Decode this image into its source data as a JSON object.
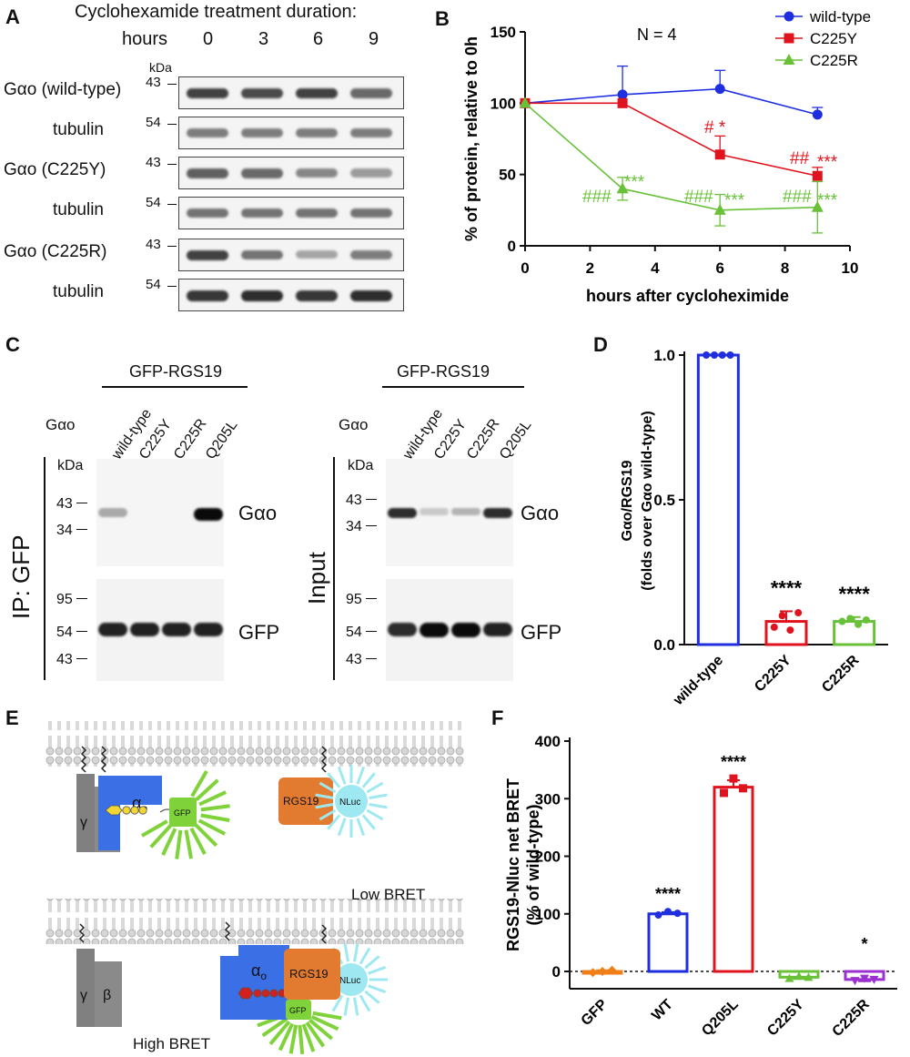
{
  "panels": {
    "A": "A",
    "B": "B",
    "C": "C",
    "D": "D",
    "E": "E",
    "F": "F"
  },
  "panel_a": {
    "title": "Cyclohexamide treatment duration:",
    "hours_label": "hours",
    "timepoints": [
      "0",
      "3",
      "6",
      "9"
    ],
    "kda_label": "kDa",
    "rows": [
      {
        "label": "Gαo (wild-type)",
        "kda": "43",
        "intensities": [
          0.85,
          0.8,
          0.85,
          0.65
        ]
      },
      {
        "label": "tubulin",
        "kda": "54",
        "intensities": [
          0.55,
          0.55,
          0.55,
          0.55
        ]
      },
      {
        "label": "Gαo (C225Y)",
        "kda": "43",
        "intensities": [
          0.7,
          0.65,
          0.5,
          0.4
        ]
      },
      {
        "label": "tubulin",
        "kda": "54",
        "intensities": [
          0.6,
          0.6,
          0.6,
          0.6
        ]
      },
      {
        "label": "Gαo (C225R)",
        "kda": "43",
        "intensities": [
          0.85,
          0.6,
          0.35,
          0.55
        ]
      },
      {
        "label": "tubulin",
        "kda": "54",
        "intensities": [
          0.9,
          0.95,
          0.9,
          0.95
        ]
      }
    ]
  },
  "panel_b": {
    "n_label": "N = 4",
    "annotations": {
      "c225y_6h": "# *",
      "c225y_9h_hash": "##",
      "c225y_9h_star": "***",
      "c225r_3h_hash": "###",
      "c225r_3h_star": "***",
      "c225r_6h_hash": "###",
      "c225r_6h_star": "***",
      "c225r_9h_hash": "###",
      "c225r_9h_star": "***"
    }
  },
  "panel_c": {
    "construct": "GFP-RGS19",
    "galpha": "Gαo",
    "lanes": [
      "wild-type",
      "C225Y",
      "C225R",
      "Q205L"
    ],
    "kda_label": "kDa",
    "ip_label": "IP: GFP",
    "input_label": "Input",
    "top_markers": [
      "43",
      "34"
    ],
    "bottom_markers": [
      "95",
      "54",
      "43"
    ],
    "band_galpha": "Gαo",
    "band_gfp": "GFP",
    "ip_galpha_intensity": [
      0.3,
      0.0,
      0.0,
      1.0
    ],
    "input_galpha_intensity": [
      0.85,
      0.15,
      0.25,
      0.85
    ],
    "ip_gfp_intensity": [
      0.9,
      0.9,
      0.9,
      0.9
    ],
    "input_gfp_intensity": [
      0.85,
      1.0,
      1.0,
      0.9
    ]
  },
  "panel_d": {
    "significance": [
      "",
      "****",
      "****"
    ]
  },
  "panel_e": {
    "gamma": "γ",
    "beta": "β",
    "alpha": "α",
    "alpha_sub": "o",
    "gfp": "GFP",
    "rgs19": "RGS19",
    "nluc": "NLuc",
    "low_bret": "Low BRET",
    "high_bret": "High BRET"
  },
  "panel_f": {
    "significance": [
      "",
      "****",
      "****",
      "",
      "*"
    ]
  },
  "chart_data": [
    {
      "type": "line",
      "xlabel": "hours after cycloheximide",
      "ylabel": "% of protein, relative to 0h",
      "xlim": [
        0,
        10
      ],
      "ylim": [
        0,
        150
      ],
      "xticks": [
        0,
        2,
        4,
        6,
        8,
        10
      ],
      "yticks": [
        0,
        50,
        100,
        150
      ],
      "legend_position": "top-right",
      "x": [
        0,
        3,
        6,
        9
      ],
      "series": [
        {
          "name": "wild-type",
          "color": "#1f2fe0",
          "marker": "circle",
          "values": [
            100,
            106,
            110,
            92
          ],
          "err": [
            0,
            20,
            13,
            5
          ]
        },
        {
          "name": "C225Y",
          "color": "#e0141e",
          "marker": "square",
          "values": [
            100,
            100,
            64,
            49
          ],
          "err": [
            0,
            0,
            13,
            6
          ]
        },
        {
          "name": "C225R",
          "color": "#69c13a",
          "marker": "triangle",
          "values": [
            100,
            40,
            25,
            27
          ],
          "err": [
            0,
            8,
            11,
            18
          ]
        }
      ]
    },
    {
      "type": "bar",
      "ylabel": "Gαo/RGS19 (folds over Gαo wild-type)",
      "ylim": [
        0,
        1.0
      ],
      "yticks": [
        "0.0",
        "0.5",
        "1.0"
      ],
      "categories": [
        "wild-type",
        "C225Y",
        "C225R"
      ],
      "values": [
        1.0,
        0.08,
        0.08
      ],
      "err": [
        0,
        0.035,
        0.015
      ],
      "colors": [
        "#1f2fe0",
        "#e0141e",
        "#69c13a"
      ],
      "points": [
        [
          1.0,
          1.0,
          1.0,
          1.0
        ],
        [
          0.06,
          0.1,
          0.05,
          0.11
        ],
        [
          0.08,
          0.09,
          0.07,
          0.085
        ]
      ]
    },
    {
      "type": "bar",
      "ylabel": "RGS19-Nluc net BRET (% of wild-type)",
      "ylim": [
        -30,
        400
      ],
      "yticks": [
        0,
        100,
        200,
        300,
        400
      ],
      "categories": [
        "GFP",
        "WT",
        "Q205L",
        "C225Y",
        "C225R"
      ],
      "values": [
        0,
        100,
        320,
        -10,
        -14
      ],
      "err": [
        2,
        3,
        12,
        3,
        3
      ],
      "colors": [
        "#f07f1a",
        "#1f2fe0",
        "#e0141e",
        "#69c13a",
        "#9b2fd0"
      ],
      "points": [
        [
          -2,
          0,
          2
        ],
        [
          98,
          104,
          101
        ],
        [
          310,
          335,
          318
        ],
        [
          -12,
          -8,
          -10
        ],
        [
          -16,
          -12,
          -14
        ]
      ]
    }
  ]
}
